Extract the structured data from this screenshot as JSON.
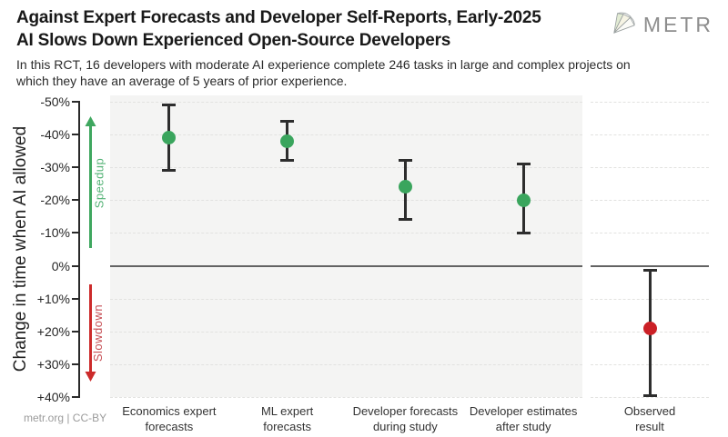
{
  "header": {
    "title_line1": "Against Expert Forecasts and Developer Self-Reports, Early-2025",
    "title_line2": "AI Slows Down Experienced Open-Source Developers",
    "subtitle": "In this RCT, 16 developers with moderate AI experience complete 246 tasks in large and complex projects on which they have an average of 5 years of prior experience.",
    "brand": "METR",
    "brand_icon": "gem-icon"
  },
  "footer": {
    "credit": "metr.org | CC-BY"
  },
  "colors": {
    "green": "#3aa55d",
    "red": "#cb2026",
    "errorbar": "#2d2d2d",
    "panel_bg": "#f4f4f3",
    "grid": "#e2e2e0",
    "zero_line": "#636363",
    "speedup_arrow": "#3fa75f",
    "slowdown_arrow": "#cc2b2b"
  },
  "chart_data": {
    "type": "scatter",
    "title": "Against Expert Forecasts and Developer Self-Reports, Early-2025 AI Slows Down Experienced Open-Source Developers",
    "ylabel": "Change in time when AI allowed",
    "ylim": [
      -50,
      40
    ],
    "grid": "horizontal-dashed",
    "annotations": {
      "speedup": "Speedup",
      "slowdown": "Slowdown"
    },
    "yticks": [
      {
        "value": -50,
        "label": "-50%"
      },
      {
        "value": -40,
        "label": "-40%"
      },
      {
        "value": -30,
        "label": "-30%"
      },
      {
        "value": -20,
        "label": "-20%"
      },
      {
        "value": -10,
        "label": "-10%"
      },
      {
        "value": 0,
        "label": "0%"
      },
      {
        "value": 10,
        "label": "+10%"
      },
      {
        "value": 20,
        "label": "+20%"
      },
      {
        "value": 30,
        "label": "+30%"
      },
      {
        "value": 40,
        "label": "+40%"
      }
    ],
    "points": [
      {
        "label": [
          "Economics expert",
          "forecasts"
        ],
        "value": -39,
        "ci": [
          -49,
          -29
        ],
        "color": "green",
        "panel": 0
      },
      {
        "label": [
          "ML expert",
          "forecasts"
        ],
        "value": -38,
        "ci": [
          -44,
          -32
        ],
        "color": "green",
        "panel": 0
      },
      {
        "label": [
          "Developer forecasts",
          "during study"
        ],
        "value": -24,
        "ci": [
          -32,
          -14
        ],
        "color": "green",
        "panel": 0
      },
      {
        "label": [
          "Developer estimates",
          "after study"
        ],
        "value": -20,
        "ci": [
          -31,
          -10
        ],
        "color": "green",
        "panel": 0
      },
      {
        "label": [
          "Observed",
          "result"
        ],
        "value": 19,
        "ci": [
          1.5,
          39.5
        ],
        "color": "red",
        "panel": 1
      }
    ]
  }
}
